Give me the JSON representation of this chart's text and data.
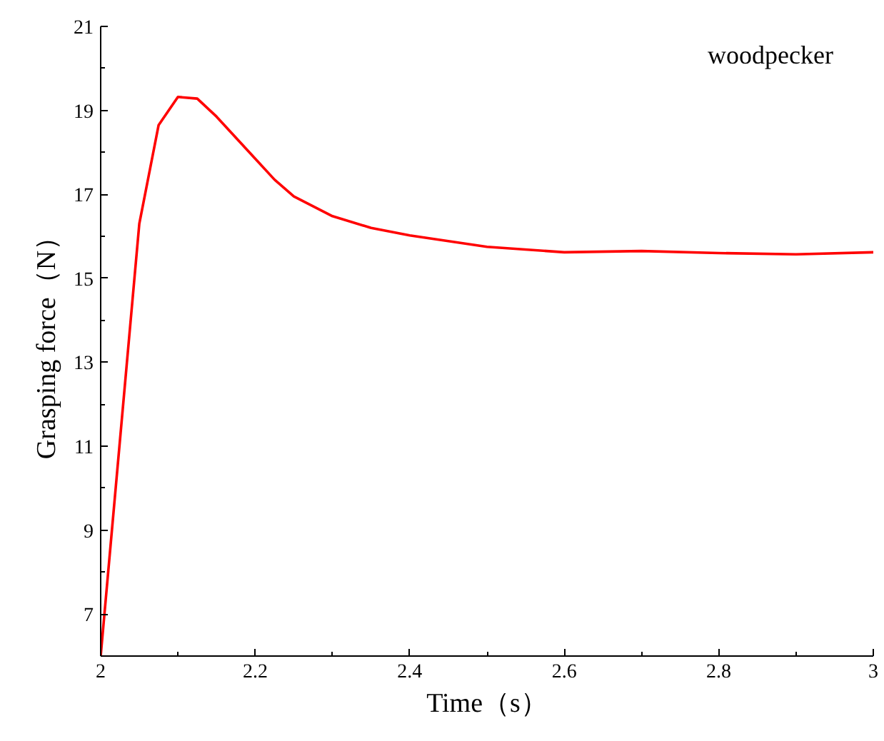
{
  "chart_data": {
    "type": "line",
    "xlabel": "Time（s）",
    "ylabel": "Grasping force（N）",
    "annotations": [
      "woodpecker"
    ],
    "x": [
      2.0,
      2.05,
      2.075,
      2.1,
      2.125,
      2.15,
      2.2,
      2.225,
      2.25,
      2.3,
      2.35,
      2.4,
      2.5,
      2.6,
      2.7,
      2.8,
      2.9,
      3.0
    ],
    "series": [
      {
        "color": "#ff0000",
        "values": [
          6.0,
          16.3,
          18.65,
          19.32,
          19.28,
          18.85,
          17.85,
          17.35,
          16.95,
          16.48,
          16.2,
          16.02,
          15.75,
          15.62,
          15.65,
          15.6,
          15.57,
          15.62
        ]
      }
    ],
    "xlim": [
      2,
      3
    ],
    "ylim": [
      6,
      21
    ],
    "xticks": [
      2,
      2.2,
      2.4,
      2.6,
      2.8,
      3
    ],
    "yticks": [
      7,
      9,
      11,
      13,
      15,
      17,
      19,
      21
    ],
    "grid": false,
    "marker": "none",
    "line_style": "solid"
  }
}
